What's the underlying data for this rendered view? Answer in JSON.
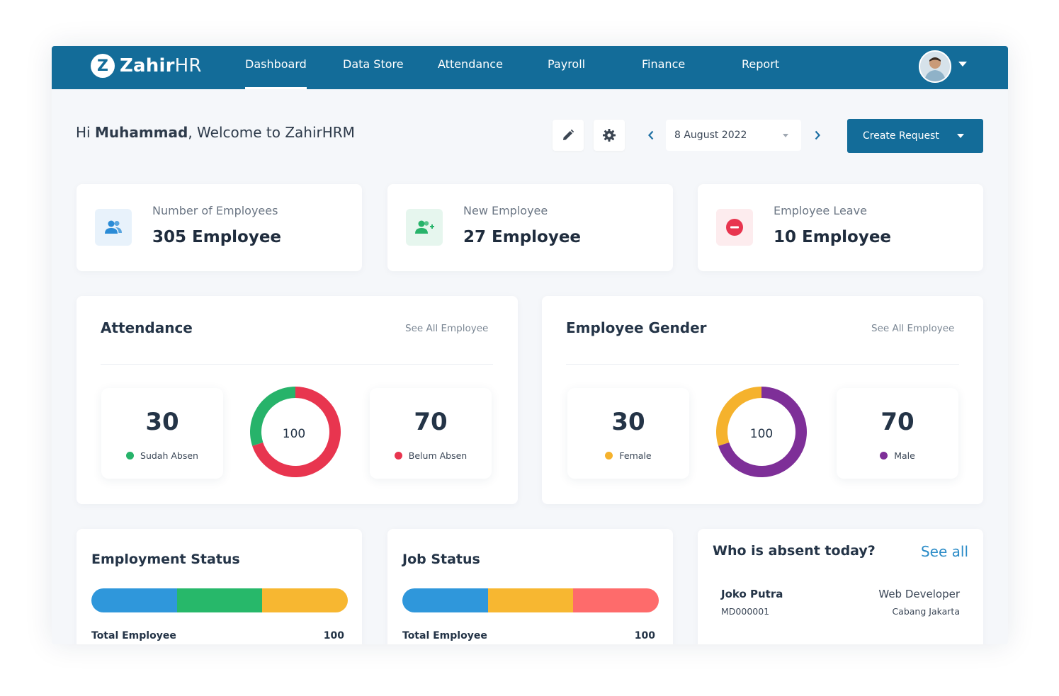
{
  "brand": {
    "logo_letter": "Z",
    "name_bold": "Zahir",
    "name_light": "HR"
  },
  "nav": {
    "items": [
      {
        "label": "Dashboard"
      },
      {
        "label": "Data Store"
      },
      {
        "label": "Attendance"
      },
      {
        "label": "Payroll"
      },
      {
        "label": "Finance"
      },
      {
        "label": "Report"
      }
    ],
    "active": "Dashboard"
  },
  "header": {
    "greeting_prefix": "Hi ",
    "user_name": "Muhammad",
    "greeting_suffix": ", Welcome to ZahirHRM",
    "edit_icon": "pencil-icon",
    "settings_icon": "gear-icon",
    "date": "8 August 2022",
    "create_request": "Create Request"
  },
  "stats": [
    {
      "label": "Number of Employees",
      "value": "305 Employee",
      "icon": "users-icon",
      "color": "#2a8bd6",
      "bg": "#e8f2fb"
    },
    {
      "label": "New Employee",
      "value": "27 Employee",
      "icon": "user-plus-icon",
      "color": "#27b36a",
      "bg": "#e6f6ee"
    },
    {
      "label": "Employee Leave",
      "value": "10 Employee",
      "icon": "minus-circle-icon",
      "color": "#e8354f",
      "bg": "#fdecee"
    }
  ],
  "attendance": {
    "title": "Attendance",
    "link": "See All Employee",
    "left": {
      "value": "30",
      "label": "Sudah Absen",
      "color": "#27b36a"
    },
    "right": {
      "value": "70",
      "label": "Belum Absen",
      "color": "#e8354f"
    },
    "total": "100"
  },
  "gender": {
    "title": "Employee Gender",
    "link": "See All Employee",
    "left": {
      "value": "30",
      "label": "Female",
      "color": "#f5b22d"
    },
    "right": {
      "value": "70",
      "label": "Male",
      "color": "#7e2f98"
    },
    "total": "100"
  },
  "employment_status": {
    "title": "Employment Status",
    "total_label": "Total Employee",
    "total_value": "100",
    "segments": [
      {
        "fraction": 0.3333,
        "color": "#2f97db"
      },
      {
        "fraction": 0.3333,
        "color": "#27b86a"
      },
      {
        "fraction": 0.3334,
        "color": "#f7b731"
      }
    ]
  },
  "job_status": {
    "title": "Job Status",
    "total_label": "Total Employee",
    "total_value": "100",
    "segments": [
      {
        "fraction": 0.3333,
        "color": "#2f97db"
      },
      {
        "fraction": 0.3333,
        "color": "#f7b731"
      },
      {
        "fraction": 0.3334,
        "color": "#fe6b6b"
      }
    ]
  },
  "absent_today": {
    "title": "Who is absent today?",
    "link": "See all",
    "people": [
      {
        "name": "Joko Putra",
        "id": "MD000001",
        "role": "Web Developer",
        "location": "Cabang Jakarta"
      }
    ]
  }
}
